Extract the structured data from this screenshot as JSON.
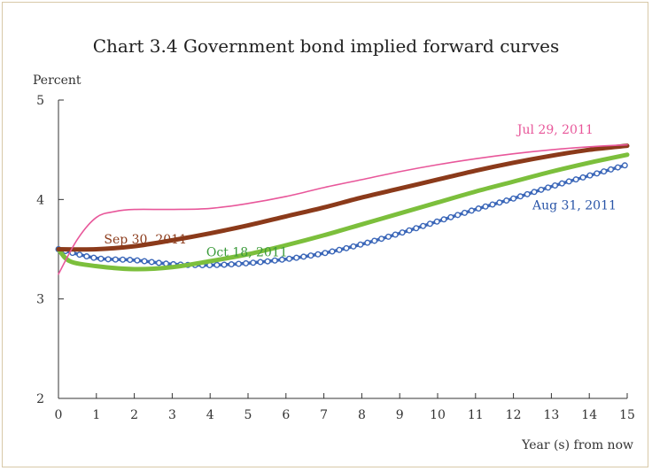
{
  "chart_data": {
    "type": "line",
    "title": "Chart 3.4  Government bond implied forward curves",
    "ylabel": "Percent",
    "xlabel": "Year (s) from now",
    "xlim": [
      0,
      15
    ],
    "ylim": [
      2,
      5
    ],
    "x_ticks": [
      "0",
      "1",
      "2",
      "3",
      "4",
      "5",
      "6",
      "7",
      "8",
      "9",
      "10",
      "11",
      "12",
      "13",
      "14",
      "15"
    ],
    "y_ticks": [
      "2",
      "3",
      "4",
      "5"
    ],
    "grid": false,
    "series": [
      {
        "name": "Jul 29, 2011",
        "color": "#e8579a",
        "style": "thin",
        "x": [
          0,
          0.5,
          1,
          1.5,
          2,
          3,
          4,
          5,
          6,
          7,
          8,
          9,
          10,
          11,
          12,
          13,
          14,
          15
        ],
        "y": [
          3.25,
          3.6,
          3.82,
          3.88,
          3.9,
          3.9,
          3.91,
          3.96,
          4.03,
          4.12,
          4.2,
          4.28,
          4.35,
          4.41,
          4.46,
          4.5,
          4.53,
          4.55
        ]
      },
      {
        "name": "Sep 30, 2011",
        "color": "#8b3a1a",
        "style": "thick",
        "x": [
          0,
          1,
          2,
          3,
          4,
          5,
          6,
          7,
          8,
          9,
          10,
          11,
          12,
          13,
          14,
          15
        ],
        "y": [
          3.5,
          3.5,
          3.53,
          3.59,
          3.66,
          3.74,
          3.83,
          3.92,
          4.02,
          4.11,
          4.2,
          4.29,
          4.37,
          4.44,
          4.5,
          4.54
        ]
      },
      {
        "name": "Oct 18, 2011",
        "color": "#7cbf3c",
        "style": "thick",
        "x": [
          0,
          0.3,
          1,
          2,
          3,
          4,
          5,
          6,
          7,
          8,
          9,
          10,
          11,
          12,
          13,
          14,
          15
        ],
        "y": [
          3.5,
          3.38,
          3.33,
          3.3,
          3.32,
          3.38,
          3.45,
          3.54,
          3.64,
          3.75,
          3.86,
          3.97,
          4.08,
          4.18,
          4.28,
          4.37,
          4.45
        ]
      },
      {
        "name": "Aug 31, 2011",
        "color": "#3a66b8",
        "style": "markers",
        "x": [
          0,
          1,
          2,
          3,
          4,
          5,
          6,
          7,
          8,
          9,
          10,
          11,
          12,
          13,
          14,
          15
        ],
        "y": [
          3.5,
          3.41,
          3.39,
          3.35,
          3.34,
          3.36,
          3.4,
          3.46,
          3.55,
          3.66,
          3.78,
          3.9,
          4.01,
          4.13,
          4.24,
          4.35
        ]
      }
    ],
    "label_positions": [
      {
        "series": "Jul 29, 2011",
        "x": 12.1,
        "y": 4.66,
        "color": "#e8579a"
      },
      {
        "series": "Sep 30, 2011",
        "x": 1.2,
        "y": 3.56,
        "color": "#8b3a1a"
      },
      {
        "series": "Oct 18, 2011",
        "x": 3.9,
        "y": 3.43,
        "color": "#3a9a3a"
      },
      {
        "series": "Aug 31, 2011",
        "x": 12.5,
        "y": 3.9,
        "color": "#2a55a8"
      }
    ]
  }
}
